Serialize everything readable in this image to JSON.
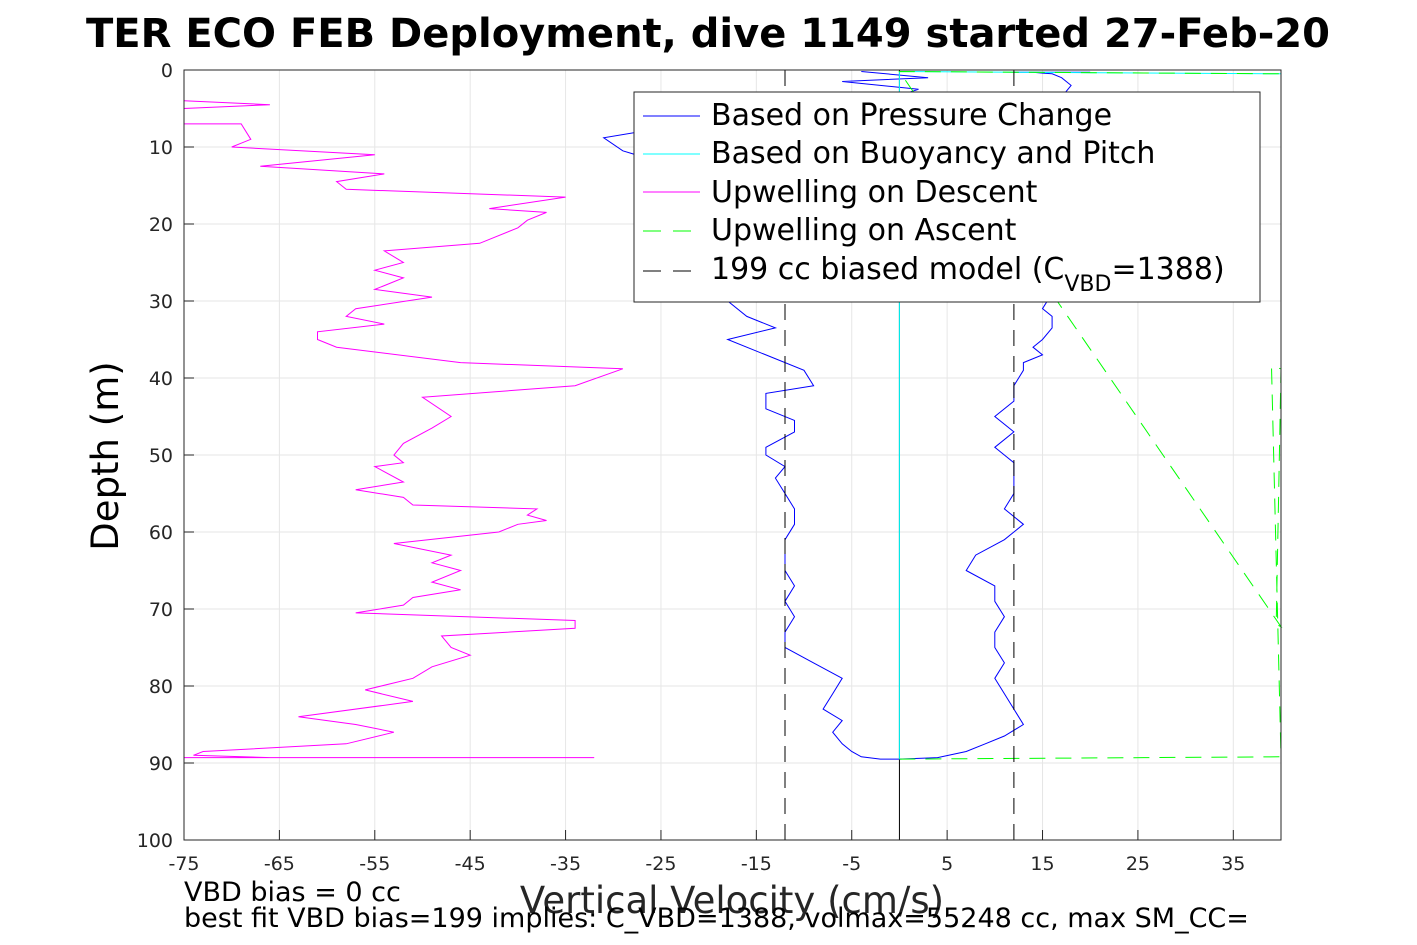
{
  "chart_data": {
    "type": "line",
    "title": "TER ECO FEB Deployment, dive 1149 started 27-Feb-20",
    "xlabel": "Vertical Velocity (cm/s)",
    "ylabel": "Depth (m)",
    "xlim": [
      -75,
      40
    ],
    "ylim": [
      0,
      100
    ],
    "y_reversed": true,
    "grid": true,
    "legend_position": "top-right",
    "x_ticks": [
      "-75",
      "-65",
      "-55",
      "-45",
      "-35",
      "-25",
      "-15",
      "-5",
      "5",
      "15",
      "25",
      "35"
    ],
    "y_ticks": [
      "0",
      "10",
      "20",
      "30",
      "40",
      "50",
      "60",
      "70",
      "80",
      "90",
      "100"
    ],
    "legend": {
      "pressure": "Based on Pressure Change",
      "buoyancy": "Based on Buoyancy and Pitch",
      "up_descent": "Upwelling on Descent",
      "up_ascent": "Upwelling on Ascent",
      "model_prefix": "199 cc biased model (C",
      "model_sub": "VBD",
      "model_suffix": "=1388)"
    },
    "colors": {
      "pressure": "#0000ff",
      "buoyancy": "#00ffff",
      "up_descent": "#ff00ff",
      "up_ascent": "#00ff00",
      "model": "#000000",
      "zero_line": "#000000"
    },
    "series": [
      {
        "name": "Based on Pressure Change",
        "x": [
          -4,
          3,
          -6,
          2,
          -3,
          -20,
          -31,
          -29,
          -25,
          -22,
          -21,
          -19,
          -19,
          -17,
          -16,
          -20,
          -18,
          -18,
          -16,
          -13,
          -18,
          -14,
          -10,
          -9,
          -14,
          -14,
          -11,
          -11,
          -14,
          -14,
          -12,
          -13,
          -12,
          -11,
          -11,
          -12,
          -12,
          -12,
          -11,
          -12,
          -11,
          -12,
          -12,
          -9,
          -6,
          -7,
          -8,
          -6,
          -7,
          -6,
          -5,
          -4,
          -2,
          0,
          4,
          7,
          9,
          11,
          13,
          12,
          11,
          10,
          11,
          10,
          10,
          11,
          10,
          10,
          7,
          8,
          11,
          13,
          11,
          12,
          12,
          12,
          10,
          12,
          10,
          12,
          12,
          13,
          13,
          15,
          14,
          15,
          16,
          16,
          15,
          16,
          14,
          12,
          13,
          15,
          19,
          18,
          19,
          18,
          20,
          19,
          18,
          19,
          17,
          18,
          17,
          16,
          15,
          14,
          15,
          14,
          15,
          17,
          19,
          18,
          19,
          20,
          19,
          18,
          19,
          19,
          14,
          15,
          16,
          17,
          19,
          19,
          18,
          13,
          12
        ],
        "y": [
          0.2,
          1,
          1.5,
          2.5,
          4.5,
          6.5,
          8.8,
          10.5,
          12,
          14,
          16,
          18,
          20,
          22,
          24,
          26,
          28,
          30,
          32,
          33.5,
          35,
          37,
          39,
          41,
          42,
          44,
          45.5,
          47,
          49,
          50,
          51.5,
          53,
          55,
          57,
          59,
          61,
          63,
          65,
          67,
          69,
          71,
          73,
          75,
          77,
          79,
          81,
          83,
          84.5,
          86,
          87.5,
          88.5,
          89.2,
          89.5,
          89.5,
          89.3,
          88.5,
          87.5,
          86.5,
          85,
          83,
          81,
          79,
          77,
          75,
          73,
          71,
          69,
          67,
          65,
          63,
          61,
          59,
          57,
          55,
          53,
          51,
          49,
          47,
          45,
          43,
          41,
          39,
          38,
          37,
          36,
          35,
          33.5,
          32,
          31,
          29,
          27,
          25,
          23,
          21,
          19,
          17,
          15,
          13,
          11,
          9,
          7,
          5,
          3.5,
          2,
          1,
          0.5,
          0.4,
          0.3,
          0.3,
          0.3,
          0.3,
          0.3,
          0.3,
          0.3,
          0.3,
          0.3,
          0.3,
          0.3,
          0.3,
          0.3,
          0.3,
          0.3,
          0.3,
          0.3,
          0.3,
          0.3,
          0.3,
          0.3,
          0.3
        ]
      },
      {
        "name": "Based on Buoyancy and Pitch",
        "x": [
          0,
          0,
          40
        ],
        "y": [
          89.5,
          0.2,
          0.5
        ]
      },
      {
        "name": "Upwelling on Descent",
        "x": [
          -75,
          -66,
          -75,
          -75,
          -69,
          -68,
          -69,
          -70,
          -55,
          -67,
          -54,
          -59,
          -58,
          -35,
          -43,
          -37,
          -39,
          -40,
          -44,
          -54,
          -52,
          -55,
          -52,
          -54,
          -55,
          -49,
          -57,
          -58,
          -54,
          -61,
          -61,
          -59,
          -46,
          -29,
          -34,
          -50,
          -47,
          -49,
          -52,
          -53,
          -52,
          -55,
          -52,
          -57,
          -52,
          -51,
          -38,
          -39,
          -37,
          -40,
          -42,
          -53,
          -47,
          -49,
          -46,
          -49,
          -46,
          -51,
          -52,
          -57,
          -34,
          -34,
          -48,
          -47,
          -45,
          -49,
          -51,
          -56,
          -51,
          -63,
          -57,
          -53,
          -58,
          -73,
          -74,
          -66,
          -75,
          -32
        ],
        "y": [
          4,
          4.5,
          5,
          7,
          7,
          9,
          9.5,
          10,
          11,
          12.5,
          13.5,
          14.5,
          15.5,
          16.5,
          18,
          18.5,
          19.5,
          20.5,
          22.5,
          23.5,
          25,
          26,
          27,
          28,
          28.5,
          29.5,
          31,
          32,
          33,
          34,
          35,
          36,
          38,
          38.8,
          41,
          42.5,
          45,
          46.5,
          48.5,
          50,
          51,
          51.5,
          53.5,
          54.5,
          55.5,
          56.5,
          57,
          57.8,
          58.5,
          59,
          60,
          61.5,
          63,
          64,
          65,
          66.5,
          67.5,
          68.5,
          69.5,
          70.5,
          71.5,
          72.5,
          73.5,
          75,
          76,
          77.5,
          79,
          80.5,
          82,
          84,
          85,
          86,
          87.5,
          88.5,
          89,
          89.3,
          89.3,
          89.3
        ]
      },
      {
        "name": "Upwelling on Ascent",
        "x": [
          0,
          40,
          39,
          40,
          39.5,
          40,
          0,
          40
        ],
        "y": [
          89.5,
          89.2,
          38.5,
          38.8,
          72,
          72.3,
          0.2,
          0.5
        ]
      },
      {
        "name": "199 cc biased model (CVBD=1388)",
        "x": [
          -12,
          -12
        ],
        "y": [
          0,
          100
        ]
      },
      {
        "name": "199 cc biased model (CVBD=1388)",
        "x": [
          12,
          12
        ],
        "y": [
          0,
          100
        ]
      }
    ]
  },
  "footer": {
    "line1": "VBD bias = 0 cc",
    "line2": "best fit VBD bias=199 implies: C_VBD=1388, volmax=55248 cc, max SM_CC="
  }
}
